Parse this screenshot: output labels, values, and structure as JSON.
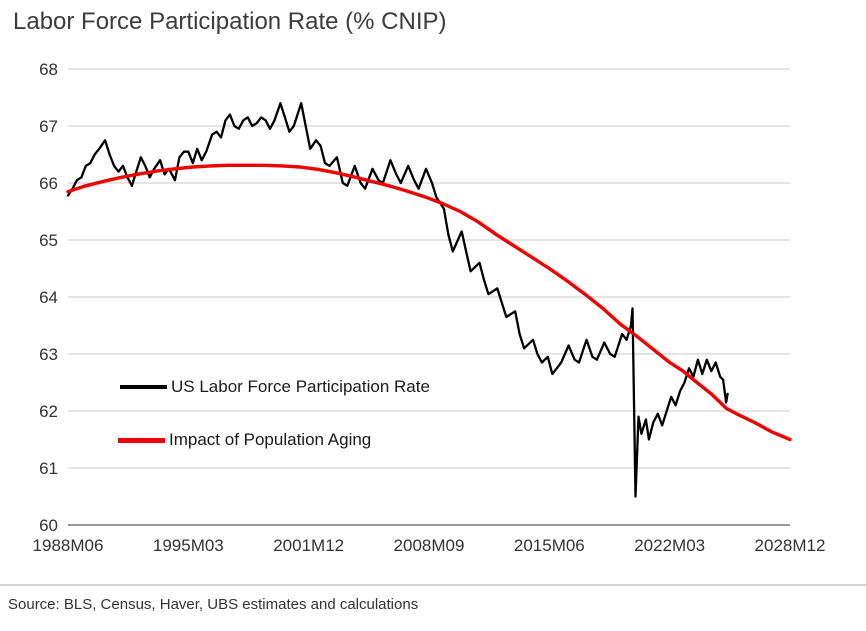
{
  "title": "Labor Force Participation Rate (% CNIP)",
  "source_note": "Source: BLS, Census, Haver, UBS estimates and calculations",
  "colors": {
    "title_text": "#3c3c3c",
    "axis_text": "#333333",
    "gridline": "#dcdcdc",
    "axis_line": "#8c8c8c",
    "series_lfpr": "#000000",
    "series_aging": "#f10000"
  },
  "chart_data": {
    "type": "line",
    "title": "Labor Force Participation Rate (% CNIP)",
    "grid": "horizontal-only",
    "legend_position": "inside-left-middle",
    "x_axis": {
      "unit": "months since 1988M06 (0 = 1988M06, 486 = 2028M12)",
      "range": [
        0,
        486
      ],
      "tick_positions": [
        0,
        81,
        162,
        243,
        324,
        405,
        486
      ],
      "tick_labels": [
        "1988M06",
        "1995M03",
        "2001M12",
        "2008M09",
        "2015M06",
        "2022M03",
        "2028M12"
      ]
    },
    "y_axis": {
      "range": [
        60,
        68
      ],
      "ticks": [
        60,
        61,
        62,
        63,
        64,
        65,
        66,
        67,
        68
      ]
    },
    "series": [
      {
        "name": "US Labor Force Participation Rate",
        "color": "#000000",
        "stroke_width": 2.3,
        "points": [
          [
            0,
            65.78
          ],
          [
            3,
            65.9
          ],
          [
            6,
            66.05
          ],
          [
            9,
            66.1
          ],
          [
            12,
            66.3
          ],
          [
            15,
            66.35
          ],
          [
            18,
            66.5
          ],
          [
            21,
            66.6
          ],
          [
            25,
            66.75
          ],
          [
            28,
            66.5
          ],
          [
            31,
            66.3
          ],
          [
            34,
            66.2
          ],
          [
            37,
            66.3
          ],
          [
            40,
            66.1
          ],
          [
            43,
            65.95
          ],
          [
            46,
            66.2
          ],
          [
            49,
            66.45
          ],
          [
            52,
            66.3
          ],
          [
            55,
            66.1
          ],
          [
            58,
            66.25
          ],
          [
            62,
            66.4
          ],
          [
            65,
            66.15
          ],
          [
            68,
            66.25
          ],
          [
            72,
            66.05
          ],
          [
            75,
            66.45
          ],
          [
            78,
            66.55
          ],
          [
            81,
            66.55
          ],
          [
            84,
            66.35
          ],
          [
            87,
            66.6
          ],
          [
            90,
            66.4
          ],
          [
            93,
            66.55
          ],
          [
            97,
            66.85
          ],
          [
            100,
            66.9
          ],
          [
            103,
            66.8
          ],
          [
            106,
            67.1
          ],
          [
            109,
            67.2
          ],
          [
            112,
            67.0
          ],
          [
            115,
            66.95
          ],
          [
            118,
            67.1
          ],
          [
            121,
            67.15
          ],
          [
            124,
            67.0
          ],
          [
            127,
            67.05
          ],
          [
            130,
            67.15
          ],
          [
            133,
            67.1
          ],
          [
            136,
            66.95
          ],
          [
            139,
            67.1
          ],
          [
            143,
            67.4
          ],
          [
            146,
            67.15
          ],
          [
            149,
            66.9
          ],
          [
            152,
            67.0
          ],
          [
            157,
            67.4
          ],
          [
            160,
            67.0
          ],
          [
            163,
            66.6
          ],
          [
            167,
            66.75
          ],
          [
            170,
            66.65
          ],
          [
            173,
            66.35
          ],
          [
            176,
            66.3
          ],
          [
            181,
            66.45
          ],
          [
            185,
            66.0
          ],
          [
            188,
            65.95
          ],
          [
            193,
            66.3
          ],
          [
            197,
            66.0
          ],
          [
            200,
            65.9
          ],
          [
            205,
            66.25
          ],
          [
            209,
            66.05
          ],
          [
            212,
            66.0
          ],
          [
            217,
            66.4
          ],
          [
            221,
            66.15
          ],
          [
            224,
            66.0
          ],
          [
            229,
            66.3
          ],
          [
            233,
            66.05
          ],
          [
            236,
            65.9
          ],
          [
            241,
            66.25
          ],
          [
            245,
            66.0
          ],
          [
            248,
            65.75
          ],
          [
            253,
            65.55
          ],
          [
            256,
            65.1
          ],
          [
            259,
            64.8
          ],
          [
            265,
            65.15
          ],
          [
            268,
            64.8
          ],
          [
            271,
            64.45
          ],
          [
            277,
            64.6
          ],
          [
            280,
            64.3
          ],
          [
            283,
            64.05
          ],
          [
            289,
            64.15
          ],
          [
            292,
            63.9
          ],
          [
            295,
            63.65
          ],
          [
            301,
            63.75
          ],
          [
            304,
            63.35
          ],
          [
            307,
            63.1
          ],
          [
            313,
            63.25
          ],
          [
            316,
            63.0
          ],
          [
            319,
            62.85
          ],
          [
            323,
            62.95
          ],
          [
            326,
            62.65
          ],
          [
            329,
            62.75
          ],
          [
            332,
            62.85
          ],
          [
            337,
            63.15
          ],
          [
            341,
            62.9
          ],
          [
            344,
            62.85
          ],
          [
            349,
            63.25
          ],
          [
            353,
            62.95
          ],
          [
            356,
            62.9
          ],
          [
            361,
            63.2
          ],
          [
            365,
            63.0
          ],
          [
            368,
            62.95
          ],
          [
            373,
            63.35
          ],
          [
            376,
            63.25
          ],
          [
            379,
            63.5
          ],
          [
            380,
            63.8
          ],
          [
            382,
            60.5
          ],
          [
            384,
            61.9
          ],
          [
            386,
            61.6
          ],
          [
            389,
            61.85
          ],
          [
            391,
            61.5
          ],
          [
            394,
            61.8
          ],
          [
            397,
            61.95
          ],
          [
            400,
            61.75
          ],
          [
            403,
            62.0
          ],
          [
            406,
            62.25
          ],
          [
            409,
            62.1
          ],
          [
            412,
            62.35
          ],
          [
            415,
            62.5
          ],
          [
            418,
            62.75
          ],
          [
            421,
            62.6
          ],
          [
            424,
            62.9
          ],
          [
            427,
            62.65
          ],
          [
            430,
            62.9
          ],
          [
            433,
            62.7
          ],
          [
            436,
            62.85
          ],
          [
            439,
            62.6
          ],
          [
            441,
            62.55
          ],
          [
            443,
            62.15
          ],
          [
            444,
            62.3
          ]
        ]
      },
      {
        "name": "Impact of Population Aging",
        "color": "#f10000",
        "stroke_width": 3.4,
        "points": [
          [
            0,
            65.85
          ],
          [
            12,
            65.95
          ],
          [
            24,
            66.03
          ],
          [
            36,
            66.1
          ],
          [
            48,
            66.16
          ],
          [
            60,
            66.21
          ],
          [
            72,
            66.25
          ],
          [
            84,
            66.28
          ],
          [
            96,
            66.3
          ],
          [
            108,
            66.31
          ],
          [
            120,
            66.31
          ],
          [
            132,
            66.31
          ],
          [
            144,
            66.3
          ],
          [
            156,
            66.28
          ],
          [
            168,
            66.24
          ],
          [
            180,
            66.18
          ],
          [
            192,
            66.11
          ],
          [
            204,
            66.03
          ],
          [
            216,
            65.95
          ],
          [
            228,
            65.86
          ],
          [
            240,
            65.76
          ],
          [
            252,
            65.64
          ],
          [
            264,
            65.5
          ],
          [
            276,
            65.32
          ],
          [
            288,
            65.1
          ],
          [
            300,
            64.9
          ],
          [
            312,
            64.7
          ],
          [
            324,
            64.5
          ],
          [
            336,
            64.28
          ],
          [
            348,
            64.05
          ],
          [
            360,
            63.8
          ],
          [
            372,
            63.52
          ],
          [
            382,
            63.33
          ],
          [
            394,
            63.08
          ],
          [
            405,
            62.85
          ],
          [
            414,
            62.7
          ],
          [
            421,
            62.55
          ],
          [
            433,
            62.3
          ],
          [
            443,
            62.05
          ],
          [
            450,
            61.95
          ],
          [
            462,
            61.8
          ],
          [
            474,
            61.63
          ],
          [
            486,
            61.5
          ]
        ]
      }
    ]
  }
}
